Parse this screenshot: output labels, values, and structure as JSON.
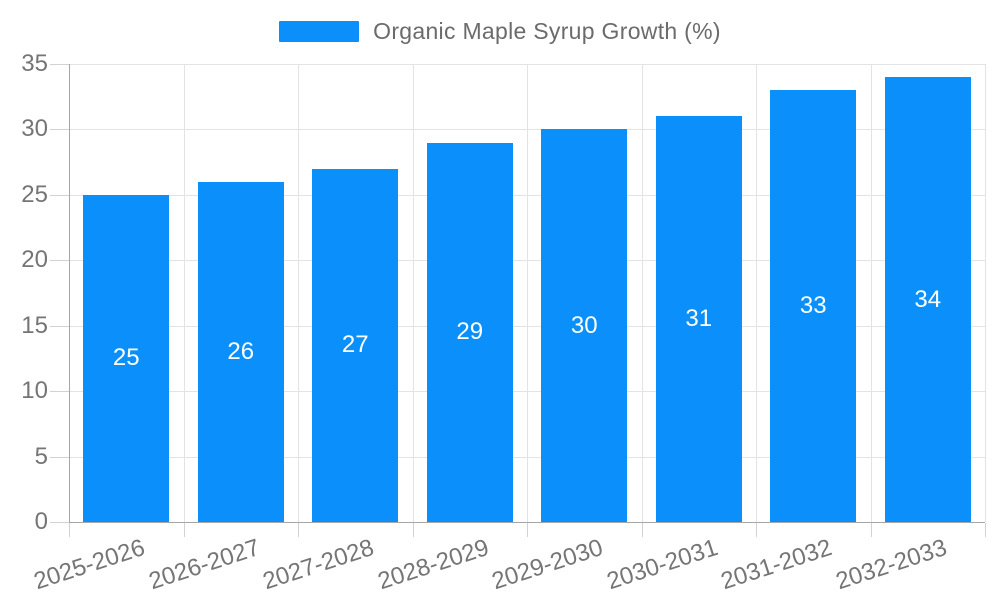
{
  "chart_data": {
    "type": "bar",
    "title": "Organic Maple Syrup Growth (%)",
    "categories": [
      "2025-2026",
      "2026-2027",
      "2027-2028",
      "2028-2029",
      "2029-2030",
      "2030-2031",
      "2031-2032",
      "2032-2033"
    ],
    "values": [
      25,
      26,
      27,
      29,
      30,
      31,
      33,
      34
    ],
    "xlabel": "",
    "ylabel": "",
    "ylim": [
      0,
      35
    ],
    "yticks": [
      0,
      5,
      10,
      15,
      20,
      25,
      30,
      35
    ],
    "grid": "on",
    "legend_position": "top-center",
    "value_labels": "inside-center",
    "x_label_rotation_deg": -18,
    "colors": {
      "bar": "#0b90fb",
      "value_label": "#ffffff",
      "axis": "#a6a6a6",
      "gridline": "#e3e3e3",
      "tick": "#d2d2d2",
      "tick_label": "#757575",
      "legend_text": "#6b6b6b"
    }
  },
  "legend": {
    "label": "Organic Maple Syrup Growth (%)"
  }
}
